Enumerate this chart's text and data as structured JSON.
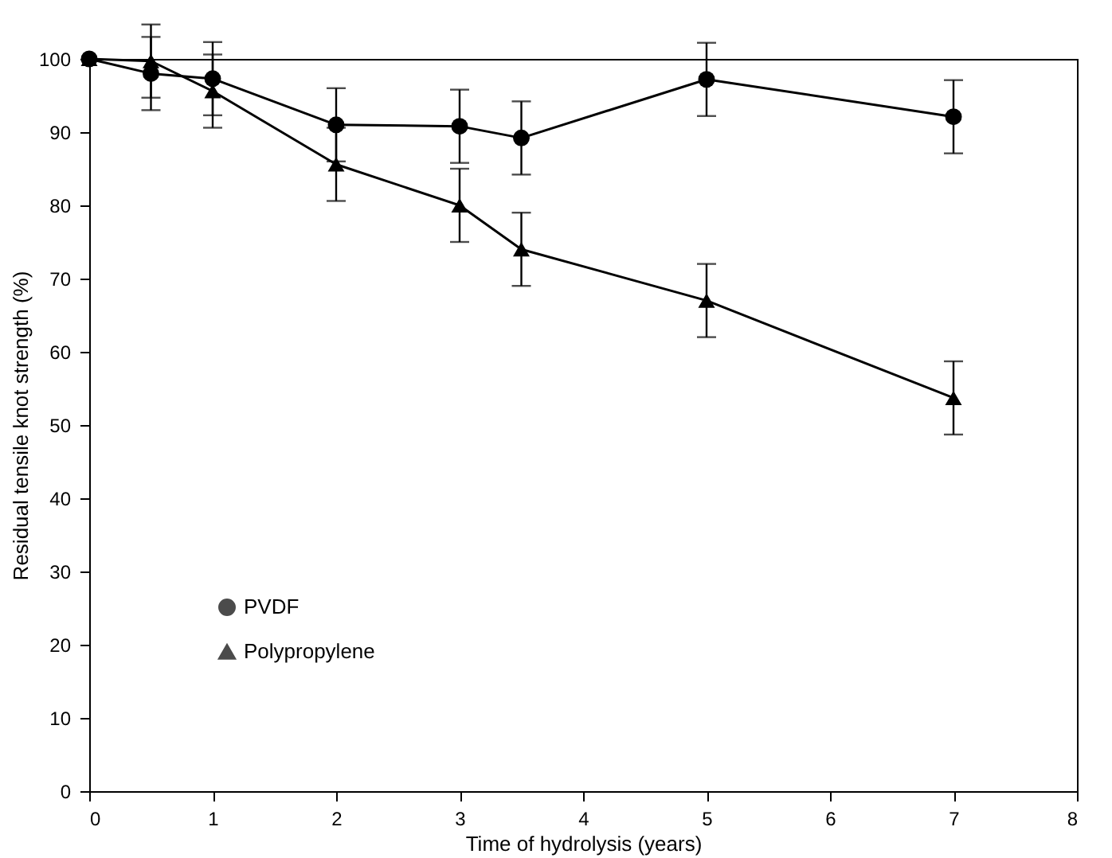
{
  "chart_data": {
    "type": "line",
    "xlabel": "Time of hydrolysis (years)",
    "ylabel": "Residual tensile knot strength (%)",
    "xlim": [
      0,
      8
    ],
    "xticks": [
      0,
      1,
      2,
      3,
      4,
      5,
      6,
      7,
      8
    ],
    "ylim": [
      0,
      100
    ],
    "yticks": [
      0,
      10,
      20,
      30,
      40,
      50,
      60,
      70,
      80,
      90,
      100
    ],
    "x": [
      0,
      0.5,
      1,
      2,
      3,
      3.5,
      5,
      7
    ],
    "grid": false,
    "legend": "bottom left",
    "series": [
      {
        "name": "PVDF",
        "color": "#000000",
        "marker": "circle",
        "values": [
          100,
          98,
          97.3,
          91,
          90.8,
          89.2,
          97.2,
          92.1
        ],
        "errors": [
          null,
          5,
          5,
          5,
          5,
          5,
          5,
          5
        ]
      },
      {
        "name": "Polypropylene",
        "color": "#000000",
        "marker": "triangle",
        "values": [
          100,
          99.7,
          95.6,
          85.6,
          80,
          74,
          67,
          53.7
        ],
        "errors": [
          null,
          5,
          5,
          5,
          5,
          5,
          5,
          5
        ]
      }
    ]
  }
}
